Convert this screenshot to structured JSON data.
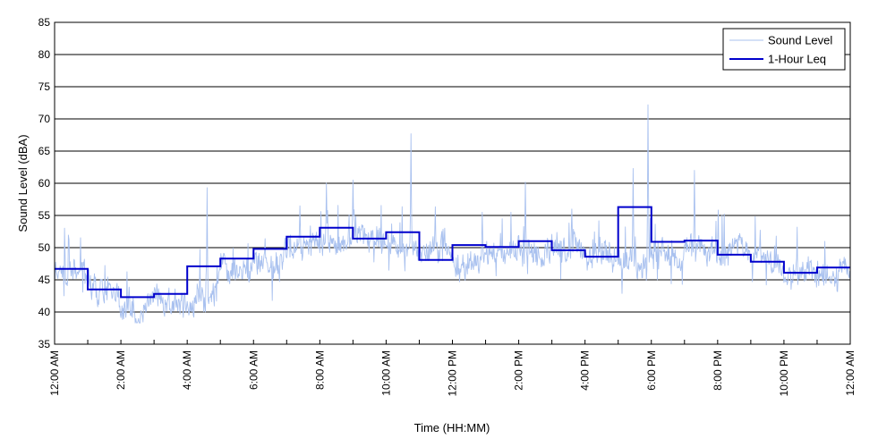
{
  "chart_data": {
    "type": "line",
    "xlabel": "Time (HH:MM)",
    "ylabel": "Sound Level (dBA)",
    "ylim": [
      35,
      85
    ],
    "yticks": [
      35,
      40,
      45,
      50,
      55,
      60,
      65,
      70,
      75,
      80,
      85
    ],
    "xlim": [
      0,
      24
    ],
    "xtick_hours": [
      0,
      2,
      4,
      6,
      8,
      10,
      12,
      14,
      16,
      18,
      20,
      22,
      24
    ],
    "xtick_labels": [
      "12:00 AM",
      "2:00 AM",
      "4:00 AM",
      "6:00 AM",
      "8:00 AM",
      "10:00 AM",
      "12:00 PM",
      "2:00 PM",
      "4:00 PM",
      "6:00 PM",
      "8:00 PM",
      "10:00 PM",
      "12:00 AM"
    ],
    "grid": "horizontal",
    "legend_position": "top-right",
    "series": [
      {
        "name": "Sound Level",
        "color": "#a9c1ef",
        "style": "thin-line",
        "baseline_by_hour": [
          46.5,
          43.5,
          40.5,
          41.5,
          41.5,
          46.5,
          47.5,
          50.5,
          50.5,
          52.0,
          50.0,
          49.5,
          48.0,
          50.0,
          49.5,
          50.0,
          48.5,
          48.0,
          50.0,
          50.0,
          49.5,
          48.0,
          45.5,
          46.5
        ],
        "spikes": [
          {
            "x": 4.6,
            "y": 59.3
          },
          {
            "x": 7.4,
            "y": 56.5
          },
          {
            "x": 8.2,
            "y": 60.0
          },
          {
            "x": 9.0,
            "y": 60.5
          },
          {
            "x": 10.75,
            "y": 67.7
          },
          {
            "x": 12.9,
            "y": 55.5
          },
          {
            "x": 14.2,
            "y": 60.2
          },
          {
            "x": 15.6,
            "y": 56.0
          },
          {
            "x": 17.45,
            "y": 62.3
          },
          {
            "x": 17.9,
            "y": 72.2
          },
          {
            "x": 19.3,
            "y": 62.0
          }
        ]
      },
      {
        "name": "1-Hour Leq",
        "color": "#0000cc",
        "style": "step",
        "hourly_leq": [
          46.7,
          43.5,
          42.3,
          42.8,
          47.1,
          48.3,
          49.8,
          51.7,
          53.1,
          51.4,
          52.4,
          48.1,
          50.4,
          50.1,
          51.0,
          49.6,
          48.6,
          56.3,
          50.9,
          51.1,
          48.9,
          47.8,
          46.1,
          46.9
        ]
      }
    ]
  }
}
